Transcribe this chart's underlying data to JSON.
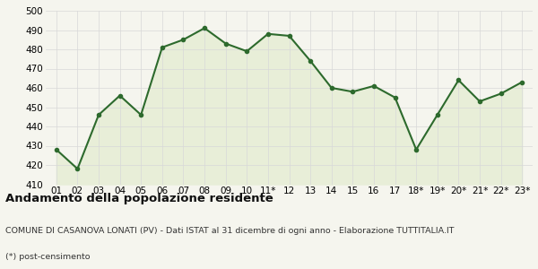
{
  "x_labels": [
    "01",
    "02",
    "03",
    "04",
    "05",
    "06",
    "07",
    "08",
    "09",
    "10",
    "11*",
    "12",
    "13",
    "14",
    "15",
    "16",
    "17",
    "18*",
    "19*",
    "20*",
    "21*",
    "22*",
    "23*"
  ],
  "y_values": [
    428,
    418,
    446,
    456,
    446,
    481,
    485,
    491,
    483,
    479,
    488,
    487,
    474,
    460,
    458,
    461,
    455,
    428,
    446,
    464,
    453,
    457,
    463
  ],
  "line_color": "#2d6a2d",
  "fill_color": "#e8eed8",
  "marker": "o",
  "marker_size": 3,
  "line_width": 1.5,
  "ylim": [
    410,
    500
  ],
  "yticks": [
    410,
    420,
    430,
    440,
    450,
    460,
    470,
    480,
    490,
    500
  ],
  "background_color": "#f5f5ee",
  "plot_bg_color": "#f5f5ee",
  "grid_color": "#d8d8d8",
  "title": "Andamento della popolazione residente",
  "subtitle": "COMUNE DI CASANOVA LONATI (PV) - Dati ISTAT al 31 dicembre di ogni anno - Elaborazione TUTTITALIA.IT",
  "footnote": "(*) post-censimento",
  "title_fontsize": 9.5,
  "subtitle_fontsize": 6.8,
  "footnote_fontsize": 6.8,
  "tick_fontsize": 7.5
}
